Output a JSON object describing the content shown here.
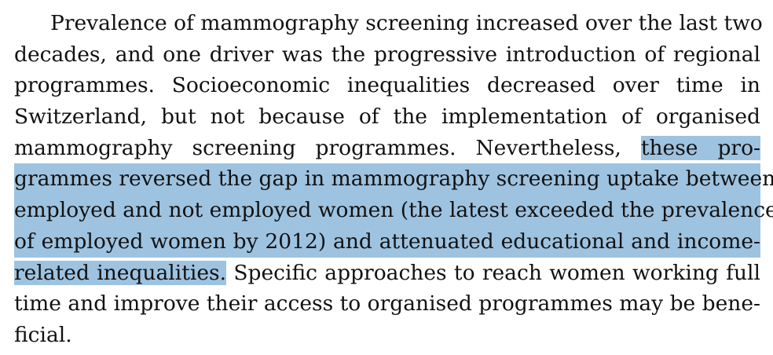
{
  "document": {
    "lines": [
      {
        "text": "Prevalence of mammography screening increased over the last two"
      },
      {
        "text": "decades, and one driver was the progressive introduction of regional"
      },
      {
        "text": "programmes. Socioeconomic inequalities decreased over time in"
      },
      {
        "text": "Switzerland, but not because of the implementation of organised"
      },
      {
        "before": "mammography screening programmes. Nevertheless, ",
        "highlight": "these pro-"
      },
      {
        "highlight": "grammes reversed the gap in mammography screening uptake between"
      },
      {
        "highlight": "employed and not employed women (the latest exceeded the prevalence"
      },
      {
        "highlight": "of employed women by 2012) and attenuated educational and income-"
      },
      {
        "highlight": "related inequalities.",
        "after": " Specific approaches to reach women working full"
      },
      {
        "text": "time and improve their access to organised programmes may be bene-"
      },
      {
        "text": "ficial."
      }
    ],
    "highlight_color": "#9ec3e0"
  }
}
